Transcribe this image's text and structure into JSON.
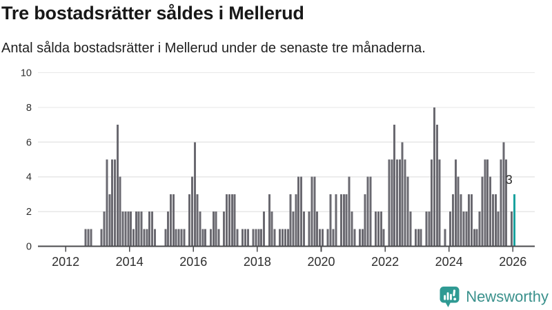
{
  "title": "Tre bostadsrätter såldes i Mellerud",
  "subtitle": "Antal sålda bostadsrätter i Mellerud under de senaste tre månaderna.",
  "logo": {
    "text": "Newsworthy",
    "icon": "bar-chart-speech-bubble-icon",
    "icon_color": "#2f9a93",
    "text_color": "#3a918c"
  },
  "chart_data": {
    "type": "bar",
    "title": "Tre bostadsrätter såldes i Mellerud",
    "subtitle": "Antal sålda bostadsrätter i Mellerud under de senaste tre månaderna.",
    "ylabel": "",
    "xlabel": "",
    "ylim": [
      0,
      10
    ],
    "y_ticks": [
      0,
      2,
      4,
      6,
      8,
      10
    ],
    "grid": true,
    "legend": false,
    "x_start": "2012-01",
    "x_frequency": "monthly",
    "x_tick_labels": [
      "2012",
      "2014",
      "2016",
      "2018",
      "2020",
      "2022",
      "2024",
      "2026"
    ],
    "x_months_per_tick": 24,
    "bar_color": "#6a6970",
    "values_monthly": [
      0,
      0,
      0,
      0,
      0,
      0,
      0,
      1,
      1,
      1,
      0,
      0,
      0,
      1,
      2,
      5,
      3,
      5,
      5,
      7,
      4,
      2,
      2,
      2,
      2,
      1,
      2,
      2,
      2,
      1,
      1,
      2,
      2,
      1,
      0,
      0,
      0,
      1,
      2,
      3,
      3,
      1,
      1,
      1,
      1,
      0,
      3,
      4,
      6,
      3,
      2,
      1,
      1,
      0,
      1,
      2,
      2,
      1,
      0,
      2,
      3,
      3,
      3,
      3,
      1,
      0,
      1,
      1,
      1,
      0,
      1,
      1,
      1,
      1,
      2,
      0,
      3,
      2,
      1,
      0,
      1,
      1,
      1,
      1,
      3,
      2,
      3,
      4,
      4,
      2,
      0,
      2,
      4,
      4,
      2,
      1,
      1,
      0,
      1,
      3,
      1,
      3,
      0,
      3,
      3,
      3,
      4,
      2,
      1,
      0,
      1,
      1,
      3,
      4,
      4,
      0,
      2,
      2,
      2,
      1,
      0,
      5,
      5,
      7,
      5,
      5,
      6,
      5,
      4,
      2,
      0,
      1,
      1,
      1,
      0,
      2,
      2,
      5,
      8,
      7,
      5,
      0,
      1,
      0,
      2,
      3,
      5,
      4,
      3,
      2,
      2,
      3,
      3,
      1,
      1,
      2,
      4,
      5,
      5,
      4,
      3,
      3,
      2,
      5,
      6,
      5,
      0,
      2
    ],
    "highlight": {
      "value": 3,
      "label": "3",
      "position": "2026-01",
      "color": "#1aa29e"
    },
    "axis_color": "#4a4a4c",
    "gridline_color": "#e7e7e7",
    "tick_label_color": "#2e2e2e",
    "annotation_color": "#2b2b2b"
  }
}
